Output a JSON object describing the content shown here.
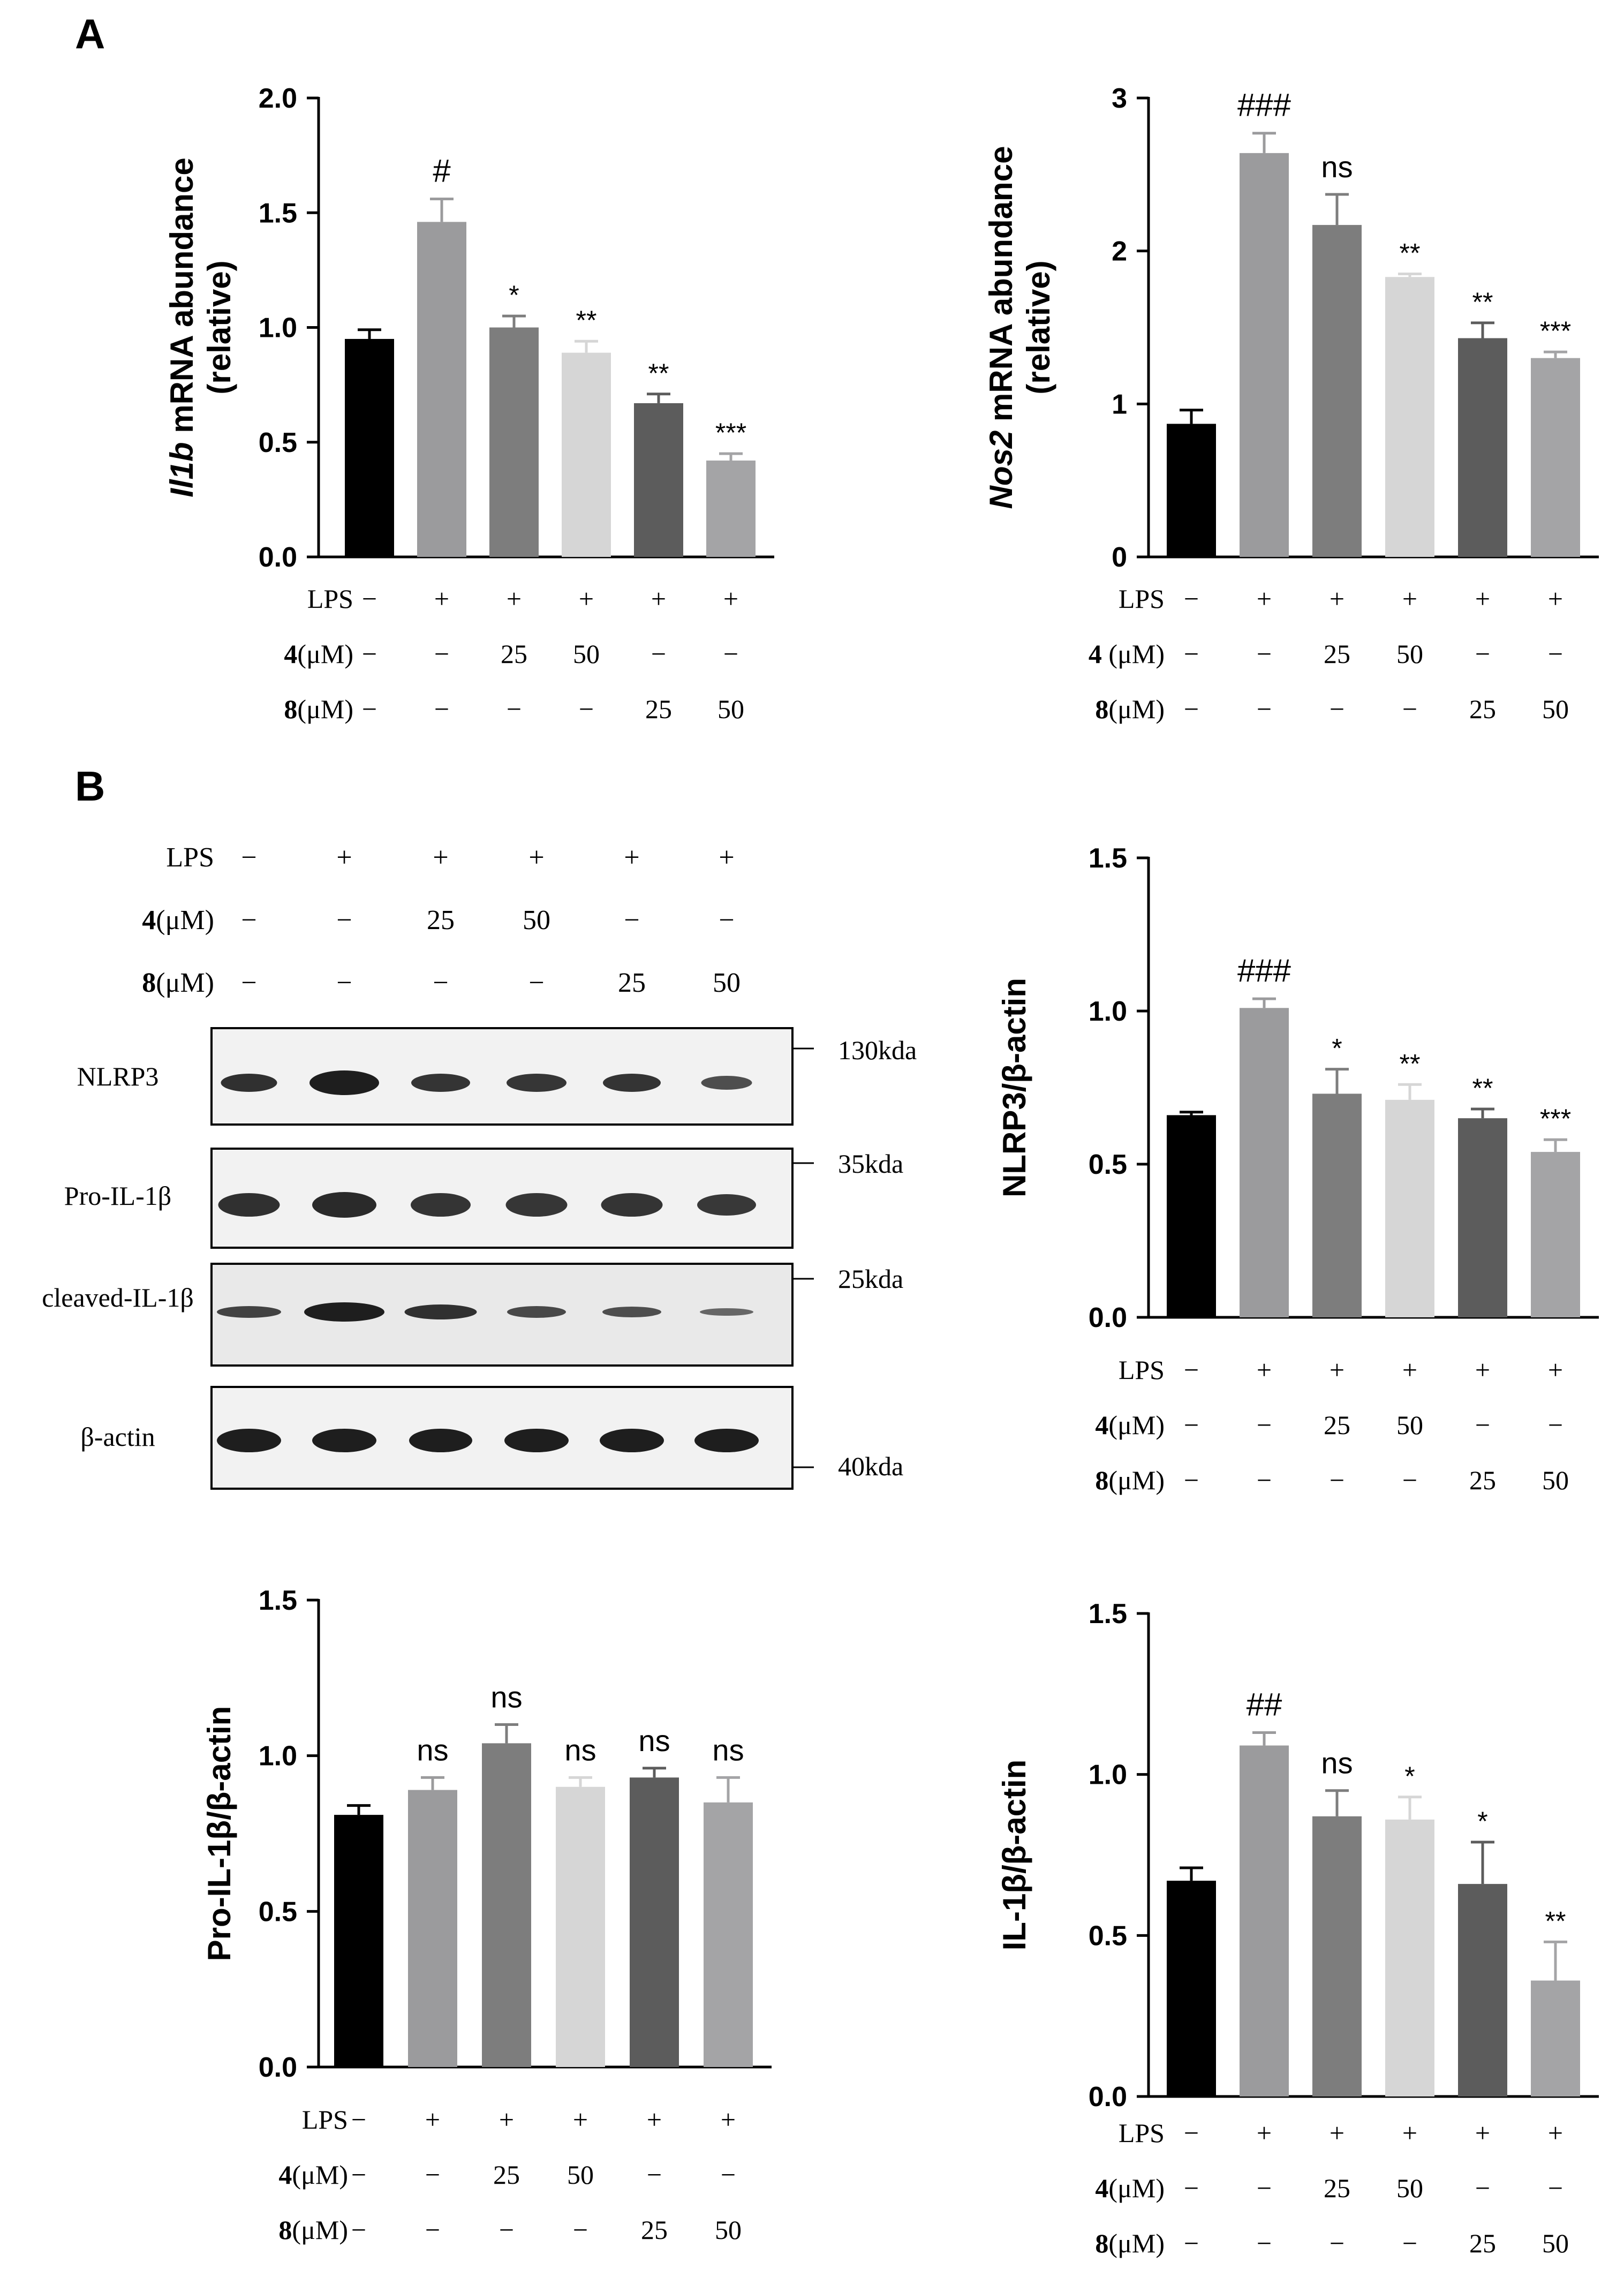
{
  "panels": {
    "A": "A",
    "B": "B"
  },
  "conditions": {
    "row_labels": [
      "LPS",
      "4(μM)",
      "8(μM)"
    ],
    "row_labels_alt": [
      "LPS",
      "4 (μM)",
      "8(μM)"
    ],
    "lps": [
      "−",
      "+",
      "+",
      "+",
      "+",
      "+"
    ],
    "c4": [
      "−",
      "−",
      "25",
      "50",
      "−",
      "−"
    ],
    "c8": [
      "−",
      "−",
      "−",
      "−",
      "25",
      "50"
    ]
  },
  "colors": [
    "#000000",
    "#9b9b9d",
    "#7d7d7d",
    "#d6d6d6",
    "#5c5c5c",
    "#a4a4a6"
  ],
  "chart_data": [
    {
      "id": "il1b",
      "type": "bar",
      "ylabel_italic": "Il1b",
      "ylabel": " mRNA abundance",
      "ylabel2": "(relative)",
      "ylim": [
        0,
        2.0
      ],
      "yticks": [
        "0.0",
        "0.5",
        "1.0",
        "1.5",
        "2.0"
      ],
      "yticks_values": [
        0,
        0.5,
        1.0,
        1.5,
        2.0
      ],
      "values": [
        0.95,
        1.46,
        1.0,
        0.89,
        0.67,
        0.42
      ],
      "errors": [
        0.04,
        0.1,
        0.05,
        0.05,
        0.04,
        0.03
      ],
      "annotations": [
        "",
        "#",
        "*",
        "**",
        "**",
        "***"
      ]
    },
    {
      "id": "nos2",
      "type": "bar",
      "ylabel_italic": "Nos2",
      "ylabel": " mRNA abundance",
      "ylabel2": "(relative)",
      "ylim": [
        0,
        3
      ],
      "yticks": [
        "0",
        "1",
        "2",
        "3"
      ],
      "yticks_values": [
        0,
        1,
        2,
        3
      ],
      "values": [
        0.87,
        2.64,
        2.17,
        1.83,
        1.43,
        1.3
      ],
      "errors": [
        0.09,
        0.13,
        0.2,
        0.02,
        0.1,
        0.04
      ],
      "annotations": [
        "",
        "###",
        "ns",
        "**",
        "**",
        "***"
      ]
    },
    {
      "id": "nlrp3",
      "type": "bar",
      "ylabel": "NLRP3/β-actin",
      "ylim": [
        0,
        1.5
      ],
      "yticks": [
        "0.0",
        "0.5",
        "1.0",
        "1.5"
      ],
      "yticks_values": [
        0,
        0.5,
        1.0,
        1.5
      ],
      "values": [
        0.66,
        1.01,
        0.73,
        0.71,
        0.65,
        0.54
      ],
      "errors": [
        0.01,
        0.03,
        0.08,
        0.05,
        0.03,
        0.04
      ],
      "annotations": [
        "",
        "###",
        "*",
        "**",
        "**",
        "***"
      ]
    },
    {
      "id": "proil1b",
      "type": "bar",
      "ylabel": "Pro-IL-1β/β-actin",
      "ylim": [
        0,
        1.5
      ],
      "yticks": [
        "0.0",
        "0.5",
        "1.0",
        "1.5"
      ],
      "yticks_values": [
        0,
        0.5,
        1.0,
        1.5
      ],
      "values": [
        0.81,
        0.89,
        1.04,
        0.9,
        0.93,
        0.85
      ],
      "errors": [
        0.03,
        0.04,
        0.06,
        0.03,
        0.03,
        0.08
      ],
      "annotations": [
        "",
        "ns",
        "ns",
        "ns",
        "ns",
        "ns"
      ]
    },
    {
      "id": "il1b_ratio",
      "type": "bar",
      "ylabel": "IL-1β/β-actin",
      "ylim": [
        0,
        1.5
      ],
      "yticks": [
        "0.0",
        "0.5",
        "1.0",
        "1.5"
      ],
      "yticks_values": [
        0,
        0.5,
        1.0,
        1.5
      ],
      "values": [
        0.67,
        1.09,
        0.87,
        0.86,
        0.66,
        0.36
      ],
      "errors": [
        0.04,
        0.04,
        0.08,
        0.07,
        0.13,
        0.12
      ],
      "annotations": [
        "",
        "##",
        "ns",
        "*",
        "*",
        "**"
      ]
    }
  ],
  "blot": {
    "rows": [
      {
        "name": "NLRP3",
        "marker": "130kda"
      },
      {
        "name": "Pro-IL-1β",
        "marker": "35kda"
      },
      {
        "name": "cleaved-IL-1β",
        "marker": "25kda"
      },
      {
        "name": "β-actin",
        "marker": "40kda"
      }
    ]
  }
}
